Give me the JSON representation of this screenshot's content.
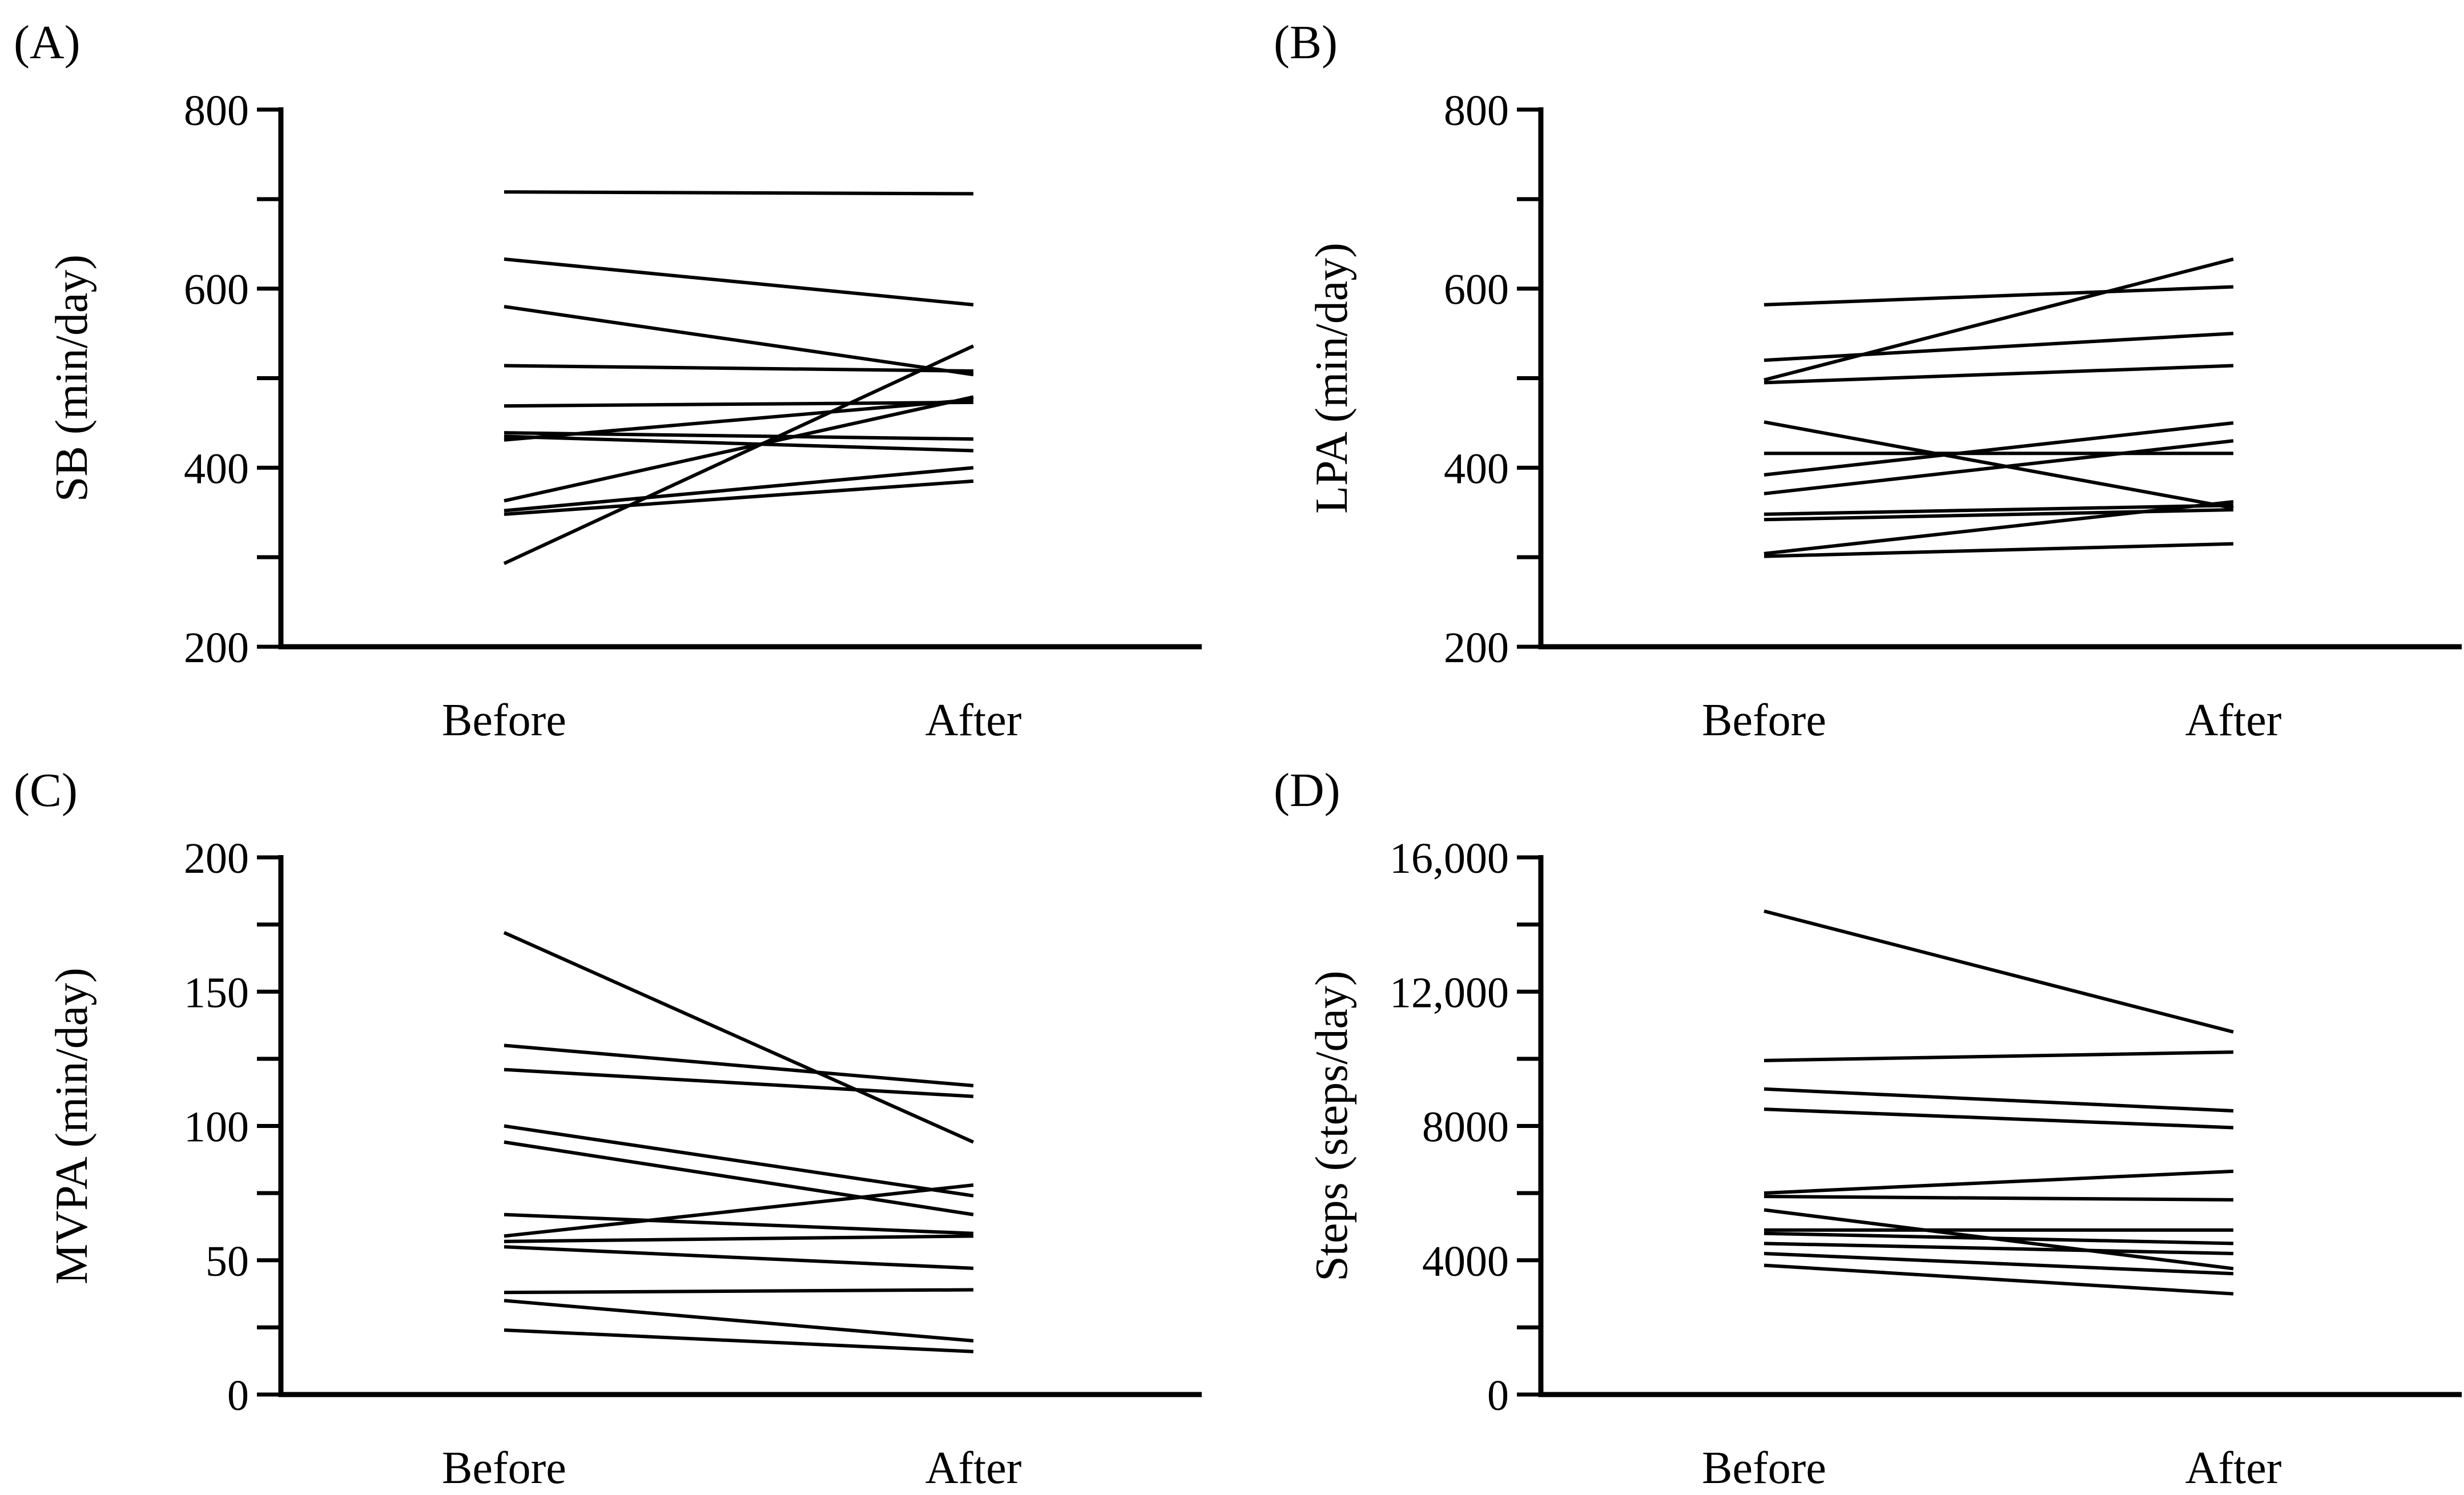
{
  "figure": {
    "background": "#ffffff",
    "stroke_color": "#000000",
    "x_categories": [
      "Before",
      "After"
    ]
  },
  "chart_data": [
    {
      "type": "line",
      "panel_label": "(A)",
      "ylabel": "SB (min/day)",
      "xlabel": "",
      "ylim": [
        200,
        800
      ],
      "tick_step": 100,
      "legend": "none",
      "grid": false,
      "x_categories": [
        "Before",
        "After"
      ],
      "ytick_labels": [
        {
          "v": 800,
          "t": "800"
        },
        {
          "v": 600,
          "t": "600"
        },
        {
          "v": 400,
          "t": "400"
        },
        {
          "v": 200,
          "t": "200"
        }
      ],
      "pairs": [
        [
          708,
          706
        ],
        [
          633,
          582
        ],
        [
          580,
          504
        ],
        [
          514,
          508
        ],
        [
          469,
          473
        ],
        [
          439,
          432
        ],
        [
          435,
          419
        ],
        [
          431,
          476
        ],
        [
          363,
          479
        ],
        [
          352,
          400
        ],
        [
          348,
          385
        ],
        [
          293,
          536
        ]
      ]
    },
    {
      "type": "line",
      "panel_label": "(B)",
      "ylabel": "LPA (min/day)",
      "xlabel": "",
      "ylim": [
        200,
        800
      ],
      "tick_step": 100,
      "legend": "none",
      "grid": false,
      "x_categories": [
        "Before",
        "After"
      ],
      "ytick_labels": [
        {
          "v": 800,
          "t": "800"
        },
        {
          "v": 600,
          "t": "600"
        },
        {
          "v": 400,
          "t": "400"
        },
        {
          "v": 200,
          "t": "200"
        }
      ],
      "pairs": [
        [
          582,
          602
        ],
        [
          520,
          550
        ],
        [
          498,
          633
        ],
        [
          495,
          514
        ],
        [
          451,
          355
        ],
        [
          416,
          416
        ],
        [
          392,
          450
        ],
        [
          371,
          430
        ],
        [
          348,
          358
        ],
        [
          342,
          353
        ],
        [
          304,
          362
        ],
        [
          301,
          315
        ]
      ]
    },
    {
      "type": "line",
      "panel_label": "(C)",
      "ylabel": "MVPA (min/day)",
      "xlabel": "",
      "ylim": [
        0,
        200
      ],
      "tick_step": 25,
      "legend": "none",
      "grid": false,
      "x_categories": [
        "Before",
        "After"
      ],
      "ytick_labels": [
        {
          "v": 200,
          "t": "200"
        },
        {
          "v": 150,
          "t": "150"
        },
        {
          "v": 100,
          "t": "100"
        },
        {
          "v": 50,
          "t": "50"
        },
        {
          "v": 0,
          "t": "0"
        }
      ],
      "pairs": [
        [
          172,
          94
        ],
        [
          130,
          115
        ],
        [
          121,
          111
        ],
        [
          100,
          74
        ],
        [
          94,
          67
        ],
        [
          67,
          60
        ],
        [
          59,
          78
        ],
        [
          57,
          59
        ],
        [
          55,
          47
        ],
        [
          38,
          39
        ],
        [
          35,
          20
        ],
        [
          24,
          16
        ]
      ]
    },
    {
      "type": "line",
      "panel_label": "(D)",
      "ylabel": "Steps (steps/day)",
      "xlabel": "",
      "ylim": [
        0,
        16000
      ],
      "tick_step": 2000,
      "legend": "none",
      "grid": false,
      "x_categories": [
        "Before",
        "After"
      ],
      "ytick_labels": [
        {
          "v": 16000,
          "t": "16,000"
        },
        {
          "v": 12000,
          "t": "12,000"
        },
        {
          "v": 8000,
          "t": "8000"
        },
        {
          "v": 4000,
          "t": "4000"
        },
        {
          "v": 0,
          "t": "0"
        }
      ],
      "pairs": [
        [
          14400,
          10800
        ],
        [
          9950,
          10200
        ],
        [
          9100,
          8450
        ],
        [
          8500,
          7950
        ],
        [
          6000,
          6650
        ],
        [
          5900,
          5800
        ],
        [
          5500,
          3750
        ],
        [
          4900,
          4900
        ],
        [
          4800,
          4500
        ],
        [
          4500,
          4200
        ],
        [
          4200,
          3600
        ],
        [
          3850,
          3000
        ]
      ]
    }
  ]
}
